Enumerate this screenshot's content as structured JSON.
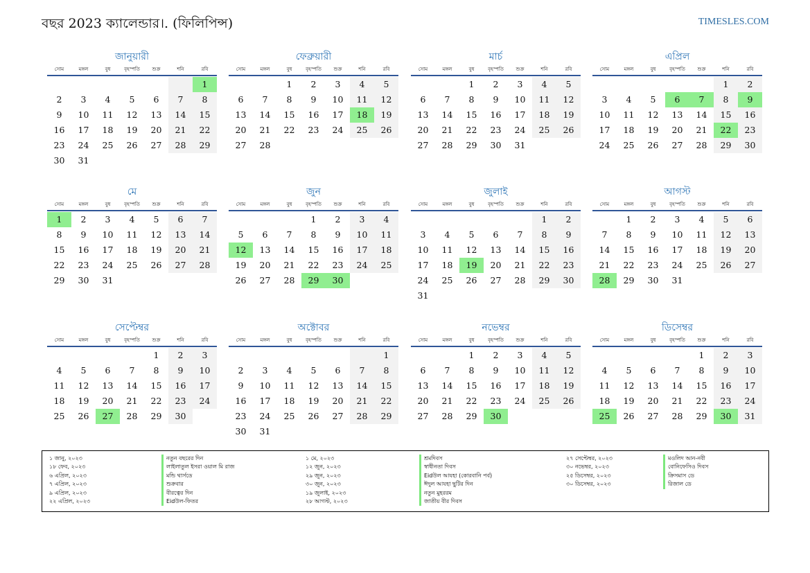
{
  "header": {
    "title": "বছর 2023 ক্যালেন্ডার।. (ফিলিপিন্স)",
    "site": "TIMESLES.COM"
  },
  "weekday_labels": [
    "সোম",
    "মঙ্গল",
    "বুধ",
    "বৃহস্পতি",
    "শুক্র",
    "শনি",
    "রবি"
  ],
  "colors": {
    "holiday": "#90ee90",
    "weekend": "#f2f2f2",
    "month_title": "#2e75b6",
    "rule": "#2f5597"
  },
  "months": [
    {
      "name": "জানুয়ারী",
      "offset": 6,
      "days": 31,
      "holidays": [
        1
      ]
    },
    {
      "name": "ফেব্রুয়ারী",
      "offset": 2,
      "days": 28,
      "holidays": [
        18
      ]
    },
    {
      "name": "মার্চ",
      "offset": 2,
      "days": 31,
      "holidays": []
    },
    {
      "name": "এপ্রিল",
      "offset": 5,
      "days": 30,
      "holidays": [
        6,
        7,
        9,
        22
      ]
    },
    {
      "name": "মে",
      "offset": 0,
      "days": 31,
      "holidays": [
        1
      ]
    },
    {
      "name": "জুন",
      "offset": 3,
      "days": 30,
      "holidays": [
        12,
        29,
        30
      ]
    },
    {
      "name": "জুলাই",
      "offset": 5,
      "days": 31,
      "holidays": [
        19
      ]
    },
    {
      "name": "আগস্ট",
      "offset": 1,
      "days": 31,
      "holidays": [
        28
      ]
    },
    {
      "name": "সেপ্টেম্বর",
      "offset": 4,
      "days": 30,
      "holidays": [
        27
      ]
    },
    {
      "name": "অক্টোবর",
      "offset": 6,
      "days": 31,
      "holidays": []
    },
    {
      "name": "নভেম্বর",
      "offset": 2,
      "days": 30,
      "holidays": [
        30
      ]
    },
    {
      "name": "ডিসেম্বর",
      "offset": 4,
      "days": 31,
      "holidays": [
        25,
        30
      ]
    }
  ],
  "legend": [
    {
      "dates": [
        "১ জানু, ২০২৩",
        "১৮ ফেব, ২০২৩",
        "৬ এপ্রিল, ২০২৩",
        "৭ এপ্রিল, ২০২৩",
        "৯ এপ্রিল, ২০২৩",
        "২২ এপ্রিল, ২০২৩"
      ],
      "names": [
        "নতুন বছরের দিন",
        "লাইলাতুল ইসরা ওয়াল মি রাজ",
        "মন্ডি থার্সডে",
        "শুক্রবার",
        "বীরত্বের দিন",
        "Eidউল-ফিতর"
      ]
    },
    {
      "dates": [
        "১ মে, ২০২৩",
        "১২ জুন, ২০২৩",
        "২৯ জুন, ২০২৩",
        "৩০ জুন, ২০২৩",
        "১৯ জুলাই, ২০২৩",
        "২৮ আগস্ট, ২০২৩"
      ],
      "names": [
        "শ্রমদিবস",
        "স্বাধীনতা দিবস",
        "Eidউল আযহা (কোরবানি পর্ব)",
        "ঈদুল আযহা ছুটির দিন",
        "নতুন মুহররম",
        "জাতীয় বীর দিবস"
      ]
    },
    {
      "dates": [
        "২৭ সেপ্টেম্বর, ২০২৩",
        "৩০ নভেম্বর, ২০২৩",
        "২৫ ডিসেম্বর, ২০২৩",
        "৩০ ডিসেম্বর, ২০২৩"
      ],
      "names": [
        "মওলিদ আন-নবী",
        "বোনিফেসিও দিবস",
        "ক্রিসমাস ডে",
        "রিজাল ডে"
      ]
    }
  ]
}
